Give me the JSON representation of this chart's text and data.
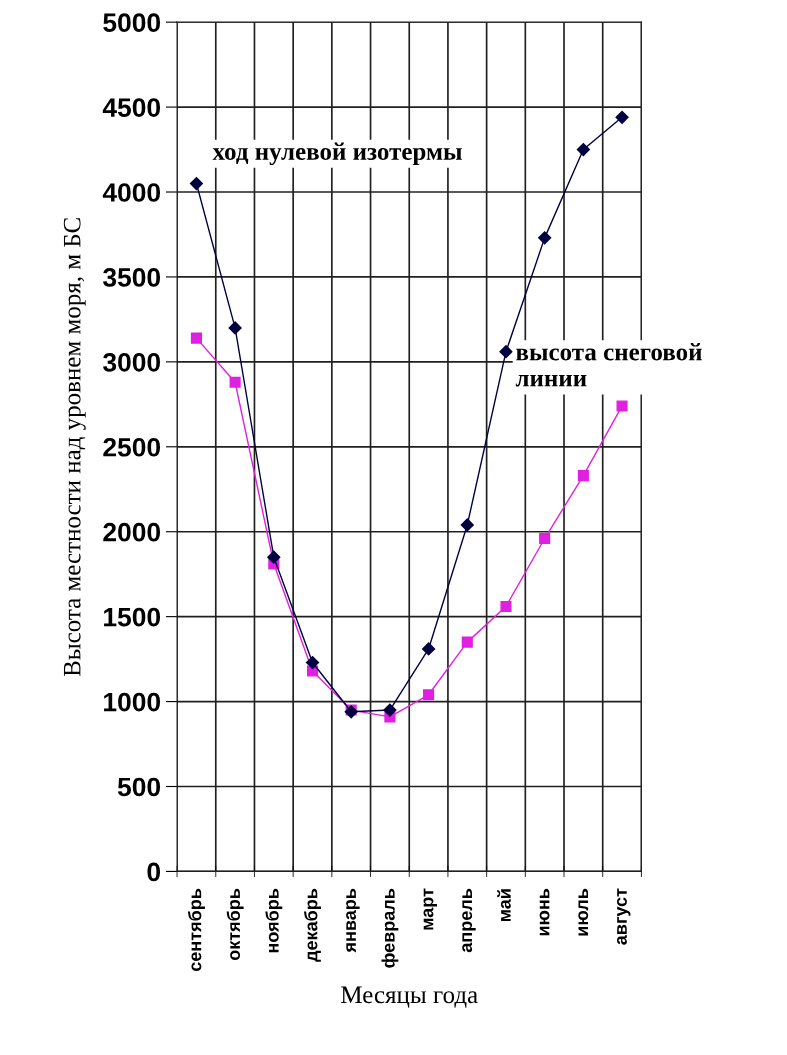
{
  "chart_data": {
    "type": "line",
    "xlabel": "Месяцы года",
    "ylabel": "Высота местности над уровнем моря, м БС",
    "categories": [
      "сентябрь",
      "октябрь",
      "ноябрь",
      "декабрь",
      "январь",
      "февраль",
      "март",
      "апрель",
      "май",
      "июнь",
      "июль",
      "август"
    ],
    "series": [
      {
        "color": "#000040",
        "marker": "diamond",
        "values": [
          4050,
          3200,
          1850,
          1230,
          940,
          950,
          1310,
          2040,
          3060,
          3730,
          4250,
          4440
        ]
      },
      {
        "color": "#e020e0",
        "marker": "square",
        "values": [
          3140,
          2880,
          1810,
          1180,
          950,
          910,
          1040,
          1350,
          1560,
          1960,
          2330,
          2740
        ]
      }
    ],
    "ylim": [
      0,
      5000
    ],
    "yticks": [
      0,
      500,
      1000,
      1500,
      2000,
      2500,
      3000,
      3500,
      4000,
      4500,
      5000
    ],
    "grid": true,
    "annotations": [
      "ход нулевой изотермы",
      "высота снеговой линии"
    ]
  }
}
